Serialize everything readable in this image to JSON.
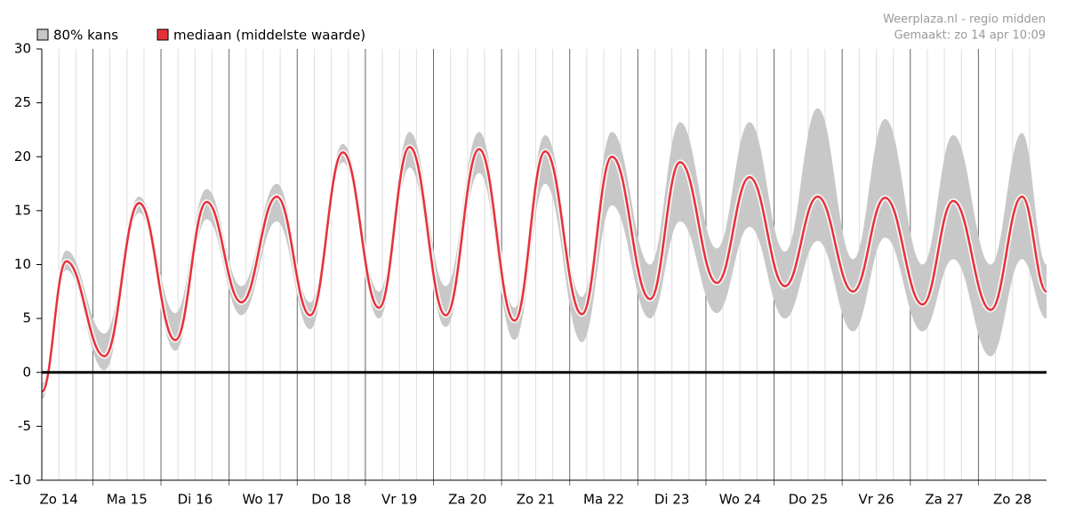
{
  "chart_data": {
    "type": "band-line",
    "source": "Weerplaza.nl - regio midden",
    "created": "Gemaakt: zo 14 apr 10:09",
    "categories": [
      "Zo 14",
      "Ma 15",
      "Di 16",
      "Wo 17",
      "Do 18",
      "Vr 19",
      "Za 20",
      "Zo 21",
      "Ma 22",
      "Di 23",
      "Wo 24",
      "Do 25",
      "Vr 26",
      "Za 27",
      "Zo 28"
    ],
    "x": [
      0.25,
      0.61,
      1.17,
      1.68,
      2.21,
      2.67,
      3.18,
      3.7,
      4.19,
      4.67,
      5.2,
      5.65,
      6.18,
      6.67,
      7.19,
      7.64,
      8.18,
      8.62,
      9.18,
      9.62,
      10.16,
      10.64,
      11.16,
      11.64,
      12.16,
      12.63,
      13.18,
      13.63,
      14.18,
      14.64,
      15.0
    ],
    "xlim": [
      0.25,
      15.0
    ],
    "series": [
      {
        "name": "80% kans",
        "color": "#c8c8c8",
        "low": [
          -2.5,
          9.5,
          0.2,
          14.8,
          2.0,
          14.2,
          5.3,
          14.0,
          4.0,
          19.5,
          5.0,
          19.0,
          4.2,
          18.5,
          3.0,
          17.5,
          2.8,
          15.5,
          5.0,
          14.0,
          5.5,
          13.5,
          5.0,
          12.2,
          3.8,
          12.5,
          3.8,
          10.5,
          1.5,
          10.5,
          5.0
        ],
        "high": [
          -1.0,
          11.3,
          3.6,
          16.3,
          5.5,
          17.0,
          8.0,
          17.5,
          6.5,
          21.2,
          7.5,
          22.3,
          8.0,
          22.3,
          6.0,
          22.0,
          7.0,
          22.3,
          10.0,
          23.2,
          11.5,
          23.2,
          11.2,
          24.5,
          10.5,
          23.5,
          10.0,
          22.0,
          10.0,
          22.2,
          10.0
        ]
      },
      {
        "name": "mediaan (middelste waarde)",
        "color": "#e8303a",
        "values": [
          -1.8,
          10.3,
          1.5,
          15.7,
          3.0,
          15.8,
          6.5,
          16.3,
          5.3,
          20.4,
          6.0,
          20.9,
          5.3,
          20.7,
          4.8,
          20.5,
          5.4,
          20.0,
          6.8,
          19.5,
          8.3,
          18.1,
          8.0,
          16.3,
          7.5,
          16.2,
          6.3,
          15.9,
          5.8,
          16.3,
          7.5
        ]
      }
    ],
    "ylim": [
      -10,
      30
    ],
    "yticks": [
      -10,
      -5,
      0,
      5,
      10,
      15,
      20,
      25,
      30
    ],
    "grid": true
  }
}
